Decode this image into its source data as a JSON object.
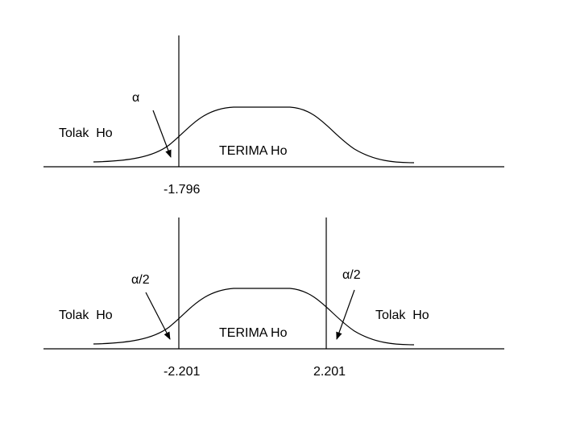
{
  "panels": [
    {
      "alpha_label": "α",
      "reject_label": "Tolak  Ho",
      "accept_label": "TERIMA Ho",
      "critical_value": "-1.796"
    },
    {
      "alpha_left_label": "α/2",
      "alpha_right_label": "α/2",
      "reject_left_label": "Tolak  Ho",
      "reject_right_label": "Tolak  Ho",
      "accept_label": "TERIMA Ho",
      "critical_left_value": "-2.201",
      "critical_right_value": "2.201"
    }
  ]
}
